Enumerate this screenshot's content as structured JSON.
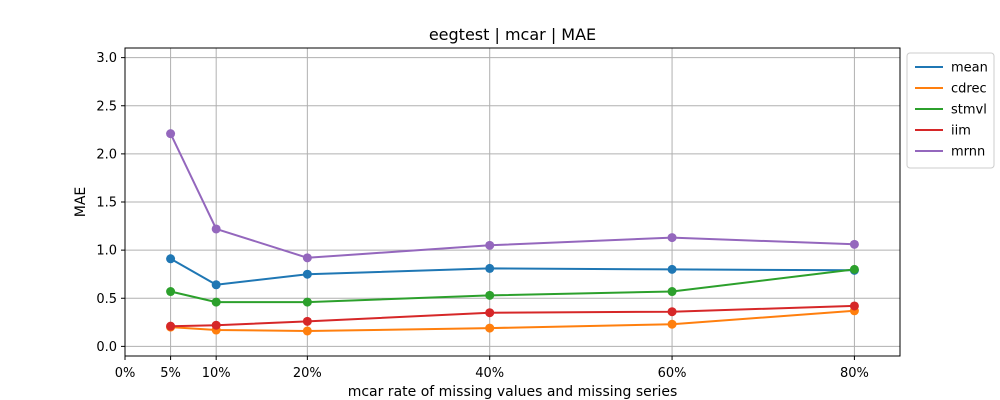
{
  "chart_data": {
    "type": "line",
    "title": "eegtest | mcar | MAE",
    "xlabel": "mcar rate of missing values and missing series",
    "ylabel": "MAE",
    "x": [
      5,
      10,
      20,
      40,
      60,
      80
    ],
    "xlim": [
      0,
      85
    ],
    "ylim": [
      -0.1,
      3.1
    ],
    "xticks": [
      0,
      5,
      10,
      20,
      40,
      60,
      80
    ],
    "xtick_labels": [
      "0%",
      "5%",
      "10%",
      "20%",
      "40%",
      "60%",
      "80%"
    ],
    "yticks": [
      0.0,
      0.5,
      1.0,
      1.5,
      2.0,
      2.5,
      3.0
    ],
    "ytick_labels": [
      "0.0",
      "0.5",
      "1.0",
      "1.5",
      "2.0",
      "2.5",
      "3.0"
    ],
    "grid": true,
    "legend_position": "outside-right-top",
    "series": [
      {
        "name": "mean",
        "color": "#1f77b4",
        "values": [
          0.91,
          0.64,
          0.75,
          0.81,
          0.8,
          0.79
        ]
      },
      {
        "name": "cdrec",
        "color": "#ff7f0e",
        "values": [
          0.2,
          0.17,
          0.16,
          0.19,
          0.23,
          0.37
        ]
      },
      {
        "name": "stmvl",
        "color": "#2ca02c",
        "values": [
          0.57,
          0.46,
          0.46,
          0.53,
          0.57,
          0.8
        ]
      },
      {
        "name": "iim",
        "color": "#d62728",
        "values": [
          0.21,
          0.22,
          0.26,
          0.35,
          0.36,
          0.42
        ]
      },
      {
        "name": "mrnn",
        "color": "#9467bd",
        "values": [
          2.21,
          1.22,
          0.92,
          1.05,
          1.13,
          1.06
        ]
      }
    ]
  }
}
